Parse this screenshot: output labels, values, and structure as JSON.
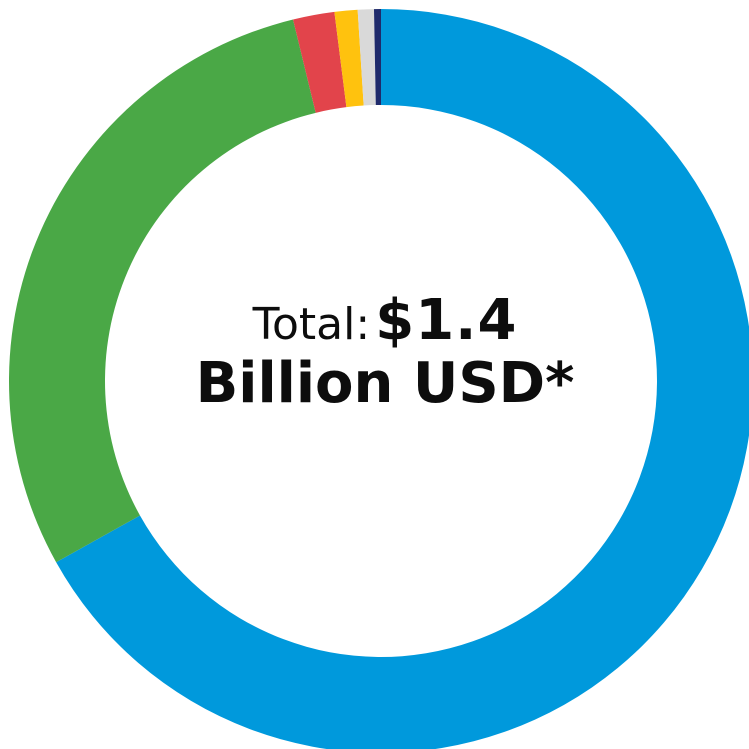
{
  "chart_data": {
    "type": "pie",
    "title": "",
    "center_label": {
      "prefix": "Total:",
      "value": "$1.4",
      "unit": "Billion USD*"
    },
    "slices": [
      {
        "value": 66.9,
        "color": "#0099DC"
      },
      {
        "value": 29.3,
        "color": "#4AA846"
      },
      {
        "value": 1.8,
        "color": "#E2444B"
      },
      {
        "value": 1.0,
        "color": "#FFC20E"
      },
      {
        "value": 0.7,
        "color": "#D9D9D9"
      },
      {
        "value": 0.3,
        "color": "#1F2A6B"
      }
    ]
  }
}
